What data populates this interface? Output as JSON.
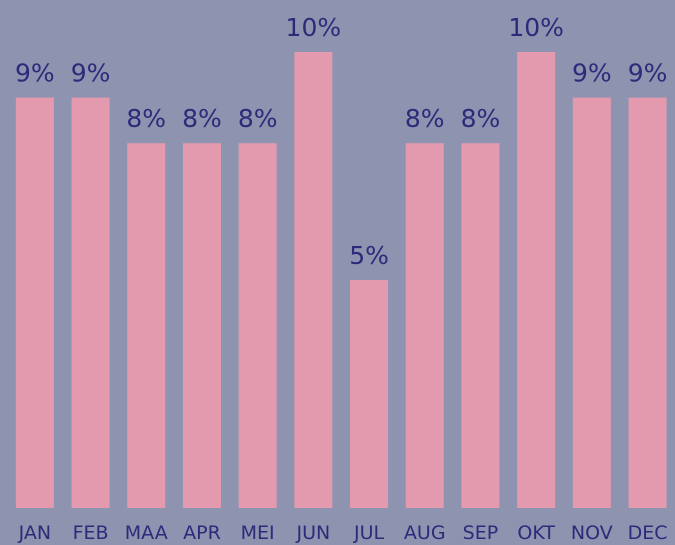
{
  "chart_data": {
    "type": "bar",
    "categories": [
      "JAN",
      "FEB",
      "MAA",
      "APR",
      "MEI",
      "JUN",
      "JUL",
      "AUG",
      "SEP",
      "OKT",
      "NOV",
      "DEC"
    ],
    "values": [
      9,
      9,
      8,
      8,
      8,
      10,
      5,
      8,
      8,
      10,
      9,
      9
    ],
    "value_labels": [
      "9%",
      "9%",
      "8%",
      "8%",
      "8%",
      "10%",
      "5%",
      "8%",
      "8%",
      "10%",
      "9%",
      "9%"
    ],
    "color": "#e49aae",
    "ylim": [
      0,
      10
    ]
  }
}
